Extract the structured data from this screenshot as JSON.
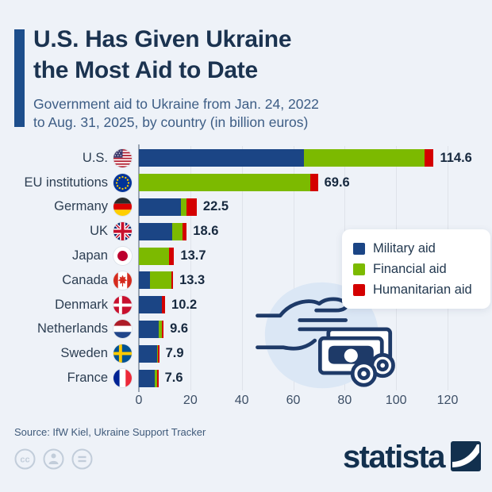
{
  "header": {
    "title_line1": "U.S. Has Given Ukraine",
    "title_line2": "the Most Aid to Date",
    "subtitle_line1": "Government aid to Ukraine from Jan. 24, 2022",
    "subtitle_line2": "to Aug. 31, 2025, by country (in billion euros)"
  },
  "chart_data": {
    "type": "bar",
    "orientation": "horizontal",
    "stacked": true,
    "unit": "billion euros",
    "categories": [
      "U.S.",
      "EU institutions",
      "Germany",
      "UK",
      "Japan",
      "Canada",
      "Denmark",
      "Netherlands",
      "Sweden",
      "France"
    ],
    "flags": [
      "us",
      "eu",
      "de",
      "uk",
      "jp",
      "ca",
      "dk",
      "nl",
      "se",
      "fr"
    ],
    "series": [
      {
        "name": "Military aid",
        "color": "#1b4585",
        "values": [
          64.3,
          0,
          16.4,
          13.0,
          0,
          4.4,
          8.8,
          7.7,
          7.0,
          6.1
        ]
      },
      {
        "name": "Financial aid",
        "color": "#7cba00",
        "values": [
          46.7,
          66.7,
          2.1,
          4.1,
          11.6,
          8.1,
          0.2,
          1.2,
          0.5,
          1.0
        ]
      },
      {
        "name": "Humanitarian aid",
        "color": "#d40000",
        "values": [
          3.6,
          2.9,
          4.0,
          1.5,
          2.1,
          0.8,
          1.2,
          0.7,
          0.4,
          0.5
        ]
      }
    ],
    "totals": [
      114.6,
      69.6,
      22.5,
      18.6,
      13.7,
      13.3,
      10.2,
      9.6,
      7.9,
      7.6
    ],
    "value_labels": [
      "114.6",
      "69.6",
      "22.5",
      "18.6",
      "13.7",
      "13.3",
      "10.2",
      "9.6",
      "7.9",
      "7.6"
    ],
    "xticks": [
      0,
      20,
      40,
      60,
      80,
      100,
      120
    ],
    "xlim": [
      0,
      120
    ],
    "grid": true,
    "legend_position": "right-middle"
  },
  "colors": {
    "background": "#eef2f8",
    "accent_bar": "#1d4e8c",
    "title_text": "#1b3350",
    "subtitle_text": "#3d5d85",
    "gridline": "#dfe3ea",
    "illustration_stroke": "#1e3a68",
    "illustration_blob": "#dbe7f5"
  },
  "source": "Source: IfW Kiel, Ukraine Support Tracker",
  "footer": {
    "brand": "statista",
    "license_icons": [
      "cc-icon",
      "attribution-person-icon",
      "no-derivatives-equals-icon"
    ]
  }
}
